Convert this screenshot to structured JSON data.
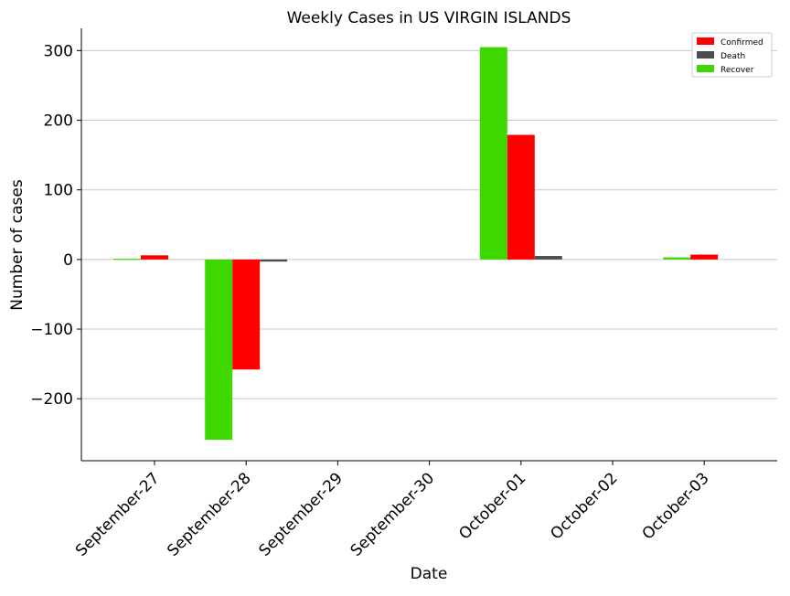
{
  "chart_data": {
    "type": "bar",
    "title": "Weekly Cases in US VIRGIN ISLANDS",
    "xlabel": "Date",
    "ylabel": "Number of cases",
    "categories": [
      "September-27",
      "September-28",
      "September-29",
      "September-30",
      "October-01",
      "October-02",
      "October-03"
    ],
    "series": [
      {
        "name": "Recover",
        "color": "#3ed800",
        "values": [
          1,
          -259,
          0,
          0,
          305,
          0,
          3
        ]
      },
      {
        "name": "Confirmed",
        "color": "#ff0000",
        "values": [
          6,
          -158,
          0,
          0,
          179,
          0,
          7
        ]
      },
      {
        "name": "Death",
        "color": "#4d4d4d",
        "values": [
          0,
          -3,
          0,
          0,
          5,
          0,
          0
        ]
      }
    ],
    "legend_order": [
      "Confirmed",
      "Death",
      "Recover"
    ],
    "legend_position": "top-right",
    "ylim": [
      -289,
      332
    ],
    "yticks": [
      -200,
      -100,
      0,
      100,
      200,
      300
    ],
    "ytick_labels": [
      "−200",
      "−100",
      "0",
      "100",
      "200",
      "300"
    ],
    "grid": "horizontal"
  }
}
